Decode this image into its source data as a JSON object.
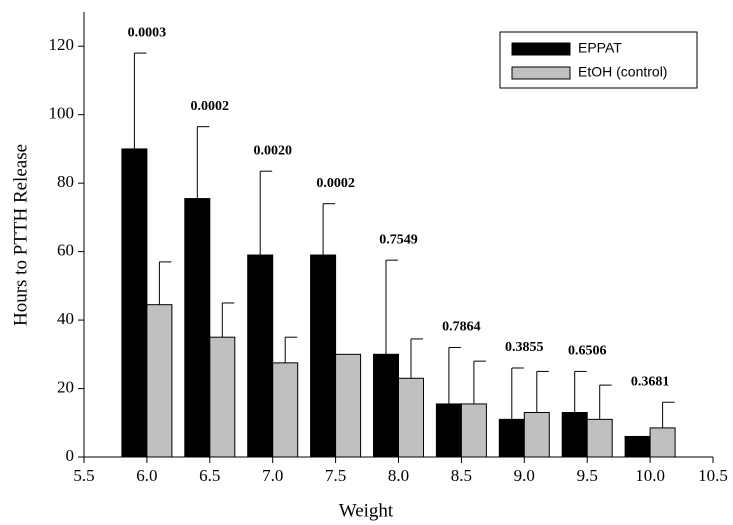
{
  "chart_data": {
    "type": "bar",
    "xlabel": "Weight",
    "ylabel": "Hours to PTTH Release",
    "x": [
      6,
      6.5,
      7,
      7.5,
      8,
      8.5,
      9,
      9.5,
      10
    ],
    "series": [
      {
        "name": "EPPAT",
        "color": "#000000",
        "values": [
          90,
          75.5,
          59,
          59,
          30,
          15.5,
          11,
          13,
          6
        ],
        "errors": [
          28,
          21,
          24.5,
          15,
          27.5,
          16.5,
          15,
          12,
          null
        ]
      },
      {
        "name": "EtOH (control)",
        "color": "#c0c0c0",
        "values": [
          44.5,
          35,
          27.5,
          30,
          23,
          15.5,
          13,
          11,
          8.5
        ],
        "errors": [
          12.5,
          10,
          7.5,
          null,
          11.5,
          12.5,
          12,
          10,
          7.5
        ]
      }
    ],
    "annotations": [
      "0.0003",
      "0.0002",
      "0.0020",
      "0.0002",
      "0.7549",
      "0.7864",
      "0.3855",
      "0.6506",
      "0.3681"
    ],
    "xlim": [
      5.5,
      10.5
    ],
    "xticks": [
      5.5,
      {
        "value": 6,
        "label": "6.0"
      },
      6.5,
      {
        "value": 7,
        "label": "7.0"
      },
      7.5,
      {
        "value": 8,
        "label": "8.0"
      },
      8.5,
      {
        "value": 9,
        "label": "9.0"
      },
      9.5,
      {
        "value": 10,
        "label": "10.0"
      },
      10.5
    ],
    "ylim": [
      0,
      130
    ],
    "yticks": [
      0,
      20,
      40,
      60,
      80,
      100,
      120
    ],
    "legend": "upper right"
  }
}
